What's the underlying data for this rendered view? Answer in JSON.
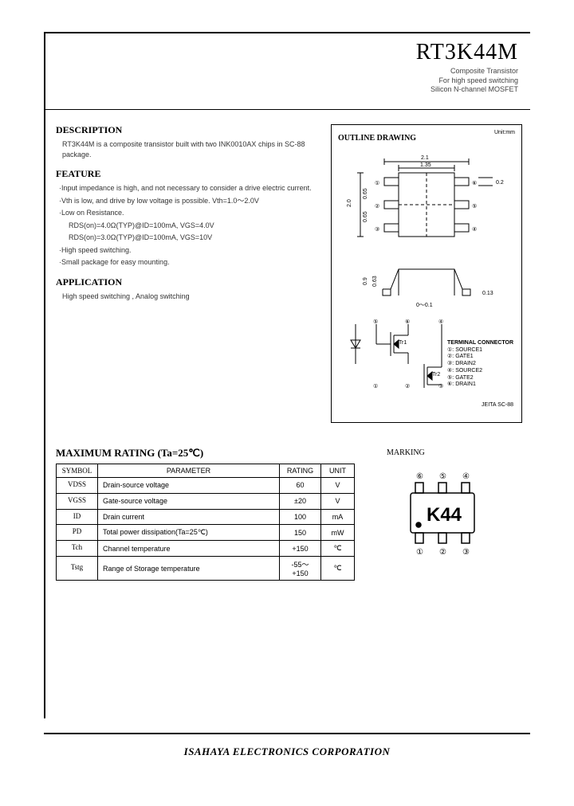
{
  "header": {
    "part_number": "RT3K44M",
    "subtitle_l1": "Composite Transistor",
    "subtitle_l2": "For high speed switching",
    "subtitle_l3": "Silicon N-channel MOSFET"
  },
  "description": {
    "heading": "DESCRIPTION",
    "text": "RT3K44M is a composite transistor built with two INK0010AX chips in SC-88 package."
  },
  "feature": {
    "heading": "FEATURE",
    "items": [
      "·Input impedance is high, and not necessary to consider a drive electric current.",
      "·Vth is low, and drive by low voltage is possible. Vth=1.0～2.0V",
      "·Low on Resistance.",
      "·High speed switching.",
      "·Small package for easy mounting."
    ],
    "sub1": "RDS(on)=4.0Ω(TYP)@ID=100mA, VGS=4.0V",
    "sub2": "RDS(on)=3.0Ω(TYP)@ID=100mA, VGS=10V"
  },
  "application": {
    "heading": "APPLICATION",
    "text": "High speed switching , Analog switching"
  },
  "drawing": {
    "title": "OUTLINE DRAWING",
    "unit": "Unit:mm",
    "dims": {
      "w_outer": "2.1",
      "w_body": "1.35",
      "h_body": "2.0",
      "pitch": "0.65",
      "lead_w": "0.2",
      "h_side": "0.9",
      "h_body_side": "0.63",
      "lead_t": "0.13",
      "standoff": "0～0.1"
    },
    "terminals_h": "TERMINAL CONNECTOR",
    "terminals": [
      "①: SOURCE1",
      "②: GATE1",
      "③: DRAIN2",
      "④: SOURCE2",
      "⑤: GATE2",
      "⑥: DRAIN1"
    ],
    "jeita": "JEITA SC-88"
  },
  "ratings": {
    "heading": "MAXIMUM RATING (Ta=25℃)",
    "columns": [
      "SYMBOL",
      "PARAMETER",
      "RATING",
      "UNIT"
    ],
    "rows": [
      {
        "sym": "VDSS",
        "param": "Drain-source voltage",
        "rating": "60",
        "unit": "V"
      },
      {
        "sym": "VGSS",
        "param": "Gate-source voltage",
        "rating": "±20",
        "unit": "V"
      },
      {
        "sym": "ID",
        "param": "Drain current",
        "rating": "100",
        "unit": "mA"
      },
      {
        "sym": "PD",
        "param": "Total power dissipation(Ta=25℃)",
        "rating": "150",
        "unit": "mW"
      },
      {
        "sym": "Tch",
        "param": "Channel temperature",
        "rating": "+150",
        "unit": "℃"
      },
      {
        "sym": "Tstg",
        "param": "Range of Storage temperature",
        "rating": "-55～+150",
        "unit": "℃"
      }
    ]
  },
  "marking": {
    "heading": "MARKING",
    "code": "K44",
    "pins_top": [
      "⑥",
      "⑤",
      "④"
    ],
    "pins_bot": [
      "①",
      "②",
      "③"
    ]
  },
  "footer": "ISAHAYA ELECTRONICS CORPORATION",
  "colors": {
    "text": "#000000",
    "body_text": "#333333",
    "border": "#000000",
    "bg": "#ffffff"
  }
}
